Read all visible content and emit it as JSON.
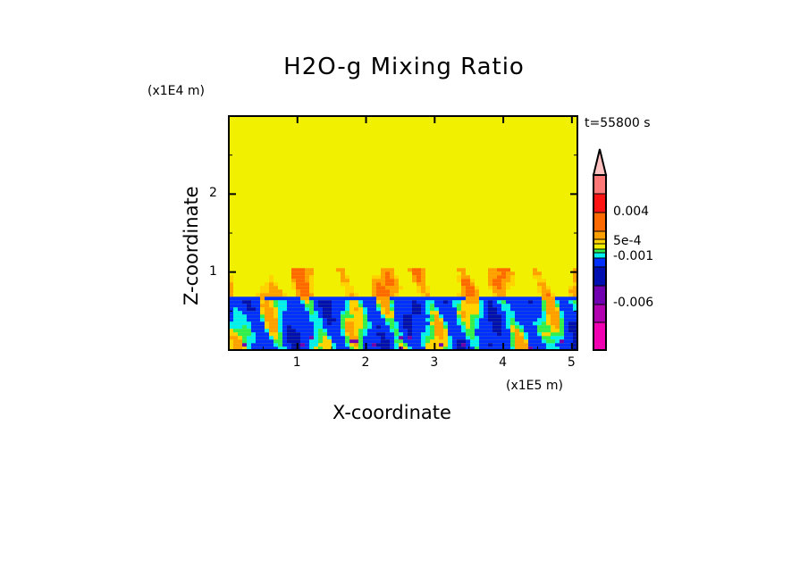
{
  "chart_data": {
    "type": "heatmap",
    "title": "H2O-g Mixing Ratio",
    "xlabel": "X-coordinate",
    "ylabel": "Z-coordinate",
    "x_unit": "(x1E5 m)",
    "y_unit": "(x1E4 m)",
    "time_label": "t=55800 s",
    "xlim": [
      0,
      5.08
    ],
    "ylim": [
      0,
      3.0
    ],
    "x_ticks": [
      1,
      2,
      3,
      4,
      5
    ],
    "y_ticks": [
      1,
      2
    ],
    "x_tick_labels": [
      "1",
      "2",
      "3",
      "4",
      "5"
    ],
    "y_tick_labels": [
      "1",
      "2"
    ],
    "background_level_top": 0.0,
    "mixed_layer_top": 0.7,
    "colorbar": {
      "colors": [
        "#ffc0c0",
        "#ff7878",
        "#ff1414",
        "#ff6a00",
        "#ffa000",
        "#ffd200",
        "#f0f000",
        "#30f050",
        "#00f0f0",
        "#0030ff",
        "#0010b0",
        "#7000b0",
        "#b000b0",
        "#f000b0"
      ],
      "labels": [
        {
          "text": "0.004",
          "value": 0.004
        },
        {
          "text": "5e-4",
          "value": 0.0005
        },
        {
          "text": "-0.001",
          "value": -0.001
        },
        {
          "text": "-0.006",
          "value": -0.006
        }
      ]
    }
  }
}
